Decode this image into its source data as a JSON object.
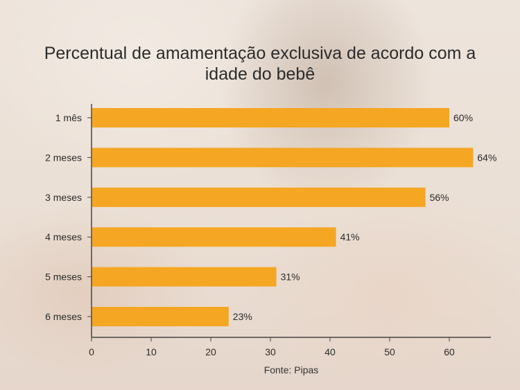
{
  "chart_data": {
    "type": "bar",
    "orientation": "horizontal",
    "title": "Percentual de amamentação exclusiva de acordo com a idade do bebê",
    "categories": [
      "1 mês",
      "2 meses",
      "3 meses",
      "4 meses",
      "5 meses",
      "6 meses"
    ],
    "values": [
      60,
      64,
      56,
      41,
      31,
      23
    ],
    "data_labels": [
      "60%",
      "64%",
      "56%",
      "41%",
      "31%",
      "23%"
    ],
    "x_ticks": [
      "0",
      "10",
      "20",
      "30",
      "40",
      "50",
      "60"
    ],
    "xlim": [
      0,
      67
    ],
    "xlabel": "",
    "ylabel": "",
    "grid": false,
    "bar_color": "#f5a623"
  },
  "source": "Fonte: Pipas"
}
